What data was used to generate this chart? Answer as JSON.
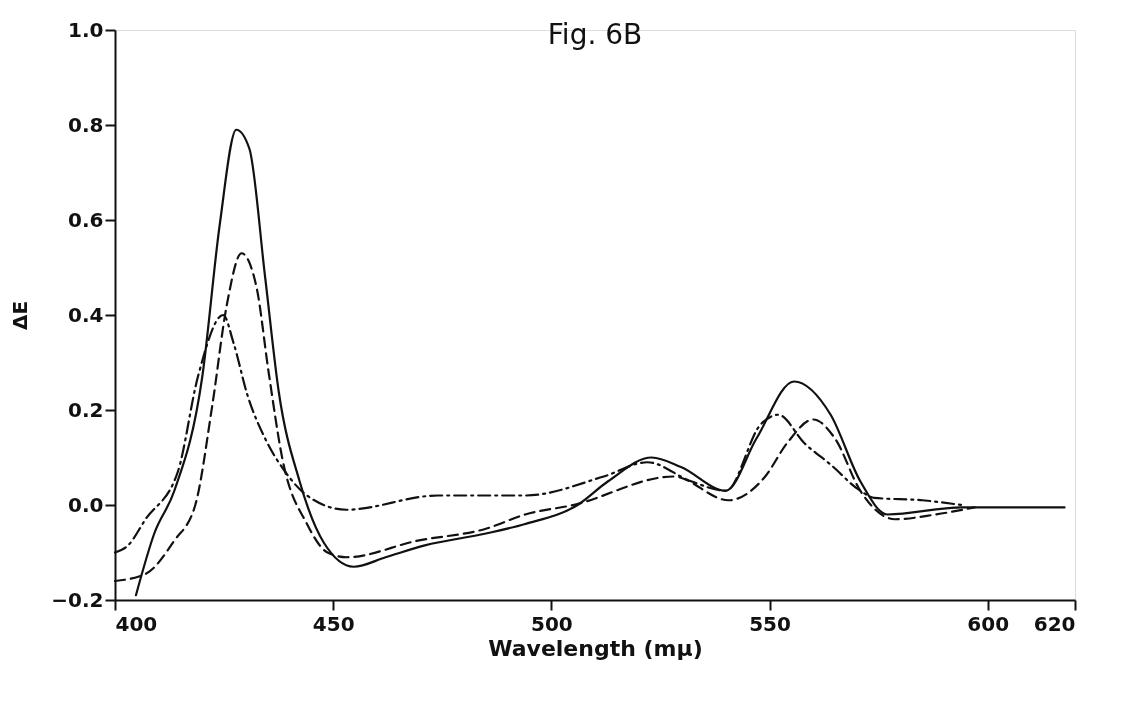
{
  "chart_data": {
    "type": "line",
    "title": "Fig. 6B",
    "xlabel": "Wavelength    (mμ)",
    "ylabel": "ΔE",
    "xlim": [
      400,
      620
    ],
    "ylim": [
      -0.2,
      1.0
    ],
    "xticks": [
      400,
      450,
      500,
      550,
      600,
      620
    ],
    "yticks": [
      -0.2,
      {
        "value": 0,
        "label": "0.0"
      },
      0.2,
      0.4,
      0.6,
      0.8,
      {
        "value": 1,
        "label": "1.0"
      }
    ],
    "grid": false,
    "marker": "none",
    "series": [
      {
        "color": "#111111",
        "line_style": "solid",
        "x": [
          404.8,
          409,
          413.6,
          420,
          424,
          427.8,
          430.8,
          434.4,
          437.5,
          442.3,
          447.9,
          454.7,
          462,
          471,
          485,
          494,
          506,
          513,
          523,
          529.7,
          540,
          547,
          555.6,
          564,
          570.8,
          577,
          594,
          617.6
        ],
        "values": [
          -0.19,
          -0.06,
          0.03,
          0.27,
          0.59,
          0.79,
          0.75,
          0.48,
          0.24,
          0.05,
          -0.08,
          -0.13,
          -0.11,
          -0.085,
          -0.06,
          -0.04,
          0.0,
          0.05,
          0.1,
          0.08,
          0.03,
          0.14,
          0.26,
          0.19,
          0.05,
          -0.02,
          -0.005,
          -0.005
        ]
      },
      {
        "color": "#111111",
        "line_style": "dashed",
        "x": [
          400,
          407,
          413.6,
          418.4,
          422.3,
          425.6,
          429,
          432.4,
          435.2,
          438.3,
          444,
          448.7,
          453,
          469.4,
          485,
          494,
          505,
          528,
          540.6,
          549,
          554,
          560,
          565,
          570.8,
          578.8,
          588,
          597
        ],
        "values": [
          -0.16,
          -0.145,
          -0.075,
          0.0,
          0.21,
          0.42,
          0.53,
          0.46,
          0.28,
          0.1,
          -0.04,
          -0.1,
          -0.11,
          -0.075,
          -0.05,
          -0.02,
          0.0,
          0.06,
          0.01,
          0.06,
          0.13,
          0.18,
          0.14,
          0.03,
          -0.03,
          -0.02,
          -0.005
        ]
      },
      {
        "color": "#111111",
        "line_style": "dashdot",
        "x": [
          400,
          403,
          407,
          414.4,
          419,
          424.8,
          427.2,
          430.4,
          434.4,
          439,
          444,
          453,
          474,
          494,
          512,
          522,
          532,
          540,
          548,
          552,
          558,
          564,
          570.8,
          574,
          585,
          594
        ],
        "values": [
          -0.1,
          -0.085,
          -0.03,
          0.07,
          0.27,
          0.4,
          0.34,
          0.23,
          0.14,
          0.07,
          0.02,
          -0.01,
          0.02,
          0.02,
          0.06,
          0.09,
          0.05,
          0.03,
          0.17,
          0.19,
          0.13,
          0.085,
          0.03,
          0.015,
          0.01,
          0.0
        ]
      }
    ]
  }
}
